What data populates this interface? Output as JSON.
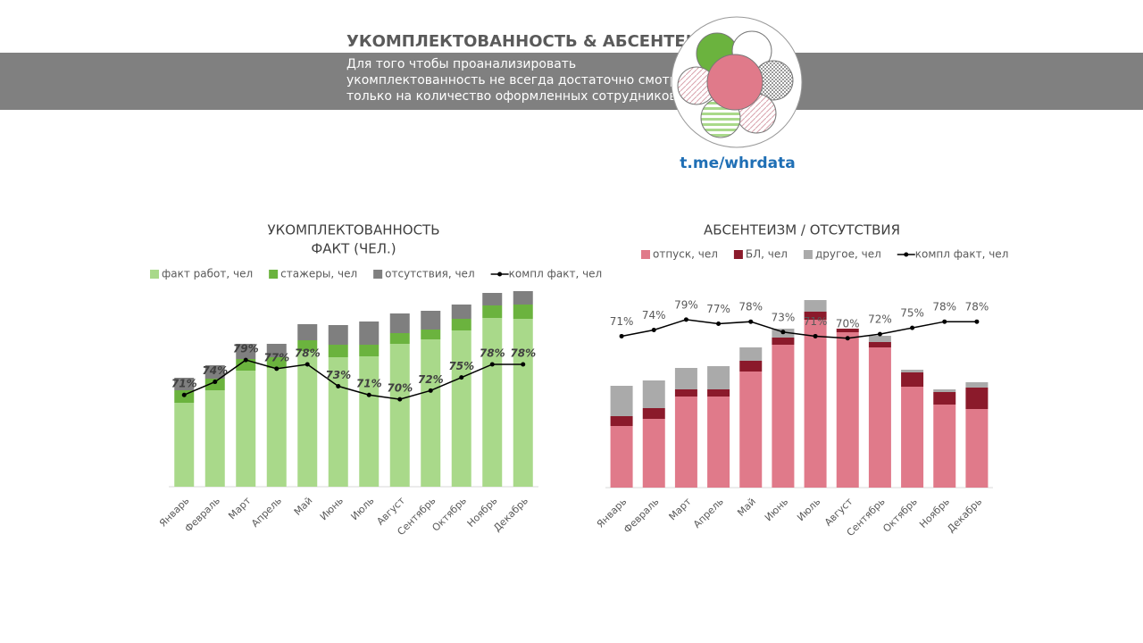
{
  "header": {
    "title": "УКОМПЛЕКТОВАННОСТЬ & АБСЕНТЕИЗМ",
    "subtitle": [
      "Для того чтобы проанализировать",
      "укомплектованность не всегда достаточно смотреть",
      "только на количество оформленных сотрудников"
    ],
    "link": "t.me/whrdata"
  },
  "chart_data": [
    {
      "type": "bar",
      "stacked": true,
      "title": "УКОМПЛЕКТОВАННОСТЬ",
      "subtitle": "ФАКТ (ЧЕЛ.)",
      "categories": [
        "Январь",
        "Февраль",
        "Март",
        "Апрель",
        "Май",
        "Июнь",
        "Июль",
        "Август",
        "Сентябрь",
        "Октябрь",
        "Ноябрь",
        "Декабрь"
      ],
      "ylim": [
        0,
        230
      ],
      "y2lim": [
        50,
        97
      ],
      "series": [
        {
          "name": "факт работ, чел",
          "color": "#a9d98a",
          "values": [
            94,
            108,
            130,
            133,
            152,
            145,
            146,
            160,
            165,
            175,
            189,
            188
          ]
        },
        {
          "name": "стажеры, чел",
          "color": "#6bb33e",
          "values": [
            14,
            13,
            13,
            12,
            12,
            14,
            13,
            12,
            11,
            13,
            14,
            16
          ]
        },
        {
          "name": "отсутствия, чел",
          "color": "#7f7f7f",
          "values": [
            14,
            15,
            17,
            15,
            18,
            22,
            26,
            22,
            21,
            16,
            14,
            15
          ]
        },
        {
          "name": "компл факт, чел",
          "color": "#000000",
          "axis": "y2",
          "values": [
            71,
            74,
            79,
            77,
            78,
            73,
            71,
            70,
            72,
            75,
            78,
            78
          ],
          "value_labels": [
            "71%",
            "74%",
            "79%",
            "77%",
            "78%",
            "73%",
            "71%",
            "70%",
            "72%",
            "75%",
            "78%",
            "78%"
          ]
        }
      ]
    },
    {
      "type": "bar",
      "stacked": true,
      "title": "АБСЕНТЕИЗМ / ОТСУТСТВИЯ",
      "categories": [
        "Январь",
        "Февраль",
        "Март",
        "Апрель",
        "Май",
        "Июнь",
        "Июль",
        "Август",
        "Сентябрь",
        "Октябрь",
        "Ноябрь",
        "Декабрь"
      ],
      "ylim": [
        0,
        216
      ],
      "y2lim": [
        -2,
        91
      ],
      "series": [
        {
          "name": "отпуск, чел",
          "color": "#e07a8a",
          "values": [
            69,
            77,
            102,
            102,
            130,
            160,
            188,
            174,
            157,
            113,
            93,
            88
          ]
        },
        {
          "name": "БЛ, чел",
          "color": "#8b1a2b",
          "values": [
            11,
            12,
            8,
            8,
            12,
            8,
            9,
            4,
            6,
            16,
            14,
            24
          ]
        },
        {
          "name": "другое, чел",
          "color": "#aaaaaa",
          "values": [
            34,
            31,
            24,
            26,
            15,
            10,
            13,
            0,
            7,
            3,
            3,
            6
          ]
        },
        {
          "name": "компл факт, чел",
          "color": "#000000",
          "axis": "y2",
          "values": [
            71,
            74,
            79,
            77,
            78,
            73,
            71,
            70,
            72,
            75,
            78,
            78
          ],
          "value_labels": [
            "71%",
            "74%",
            "79%",
            "77%",
            "78%",
            "73%",
            "71%",
            "70%",
            "72%",
            "75%",
            "78%",
            "78%"
          ]
        }
      ]
    }
  ]
}
